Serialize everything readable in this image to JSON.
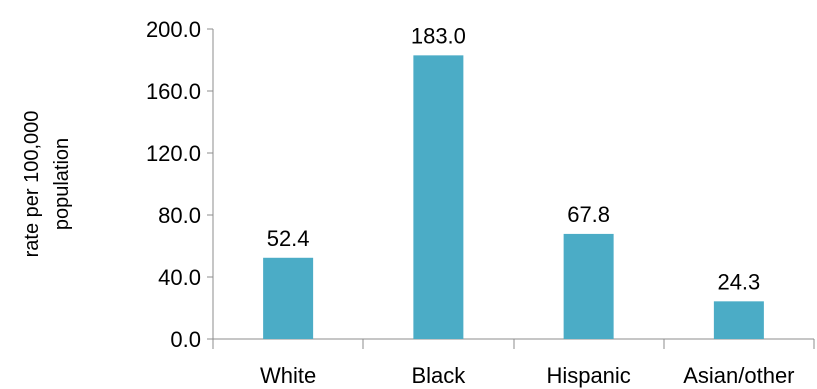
{
  "chart_data": {
    "type": "bar",
    "categories": [
      "White",
      "Black",
      "Hispanic",
      "Asian/other"
    ],
    "values": [
      52.4,
      183.0,
      67.8,
      24.3
    ],
    "value_labels": [
      "52.4",
      "183.0",
      "67.8",
      "24.3"
    ],
    "ylabel_lines": [
      "rate per 100,000",
      "population"
    ],
    "ylim": [
      0,
      200
    ],
    "yticks": [
      0,
      40,
      80,
      120,
      160,
      200
    ],
    "ytick_labels": [
      "0.0",
      "40.0",
      "80.0",
      "120.0",
      "160.0",
      "200.0"
    ],
    "grid": false,
    "legend": "none",
    "colors": {
      "bar": "#4bacc6",
      "axis": "#8c8c8c"
    }
  }
}
